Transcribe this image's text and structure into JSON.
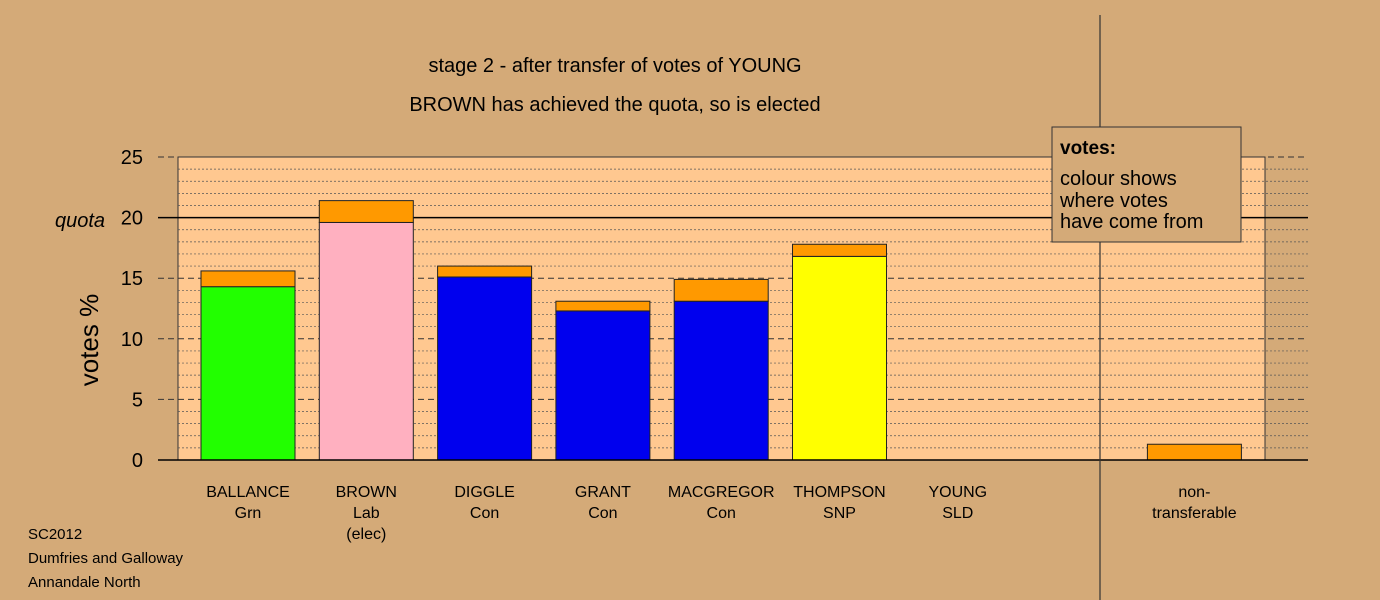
{
  "chart_data": {
    "type": "bar",
    "stacked": true,
    "title": "stage 2 - after transfer of votes of YOUNG",
    "subtitle": "BROWN has achieved the quota, so is elected",
    "ylabel": "votes %",
    "ylim": [
      0,
      25
    ],
    "yticks": [
      "0",
      "5",
      "10",
      "15",
      "20",
      "25"
    ],
    "quota_value": 20,
    "quota_label": "quota",
    "grid": true,
    "categories": [
      {
        "name": "BALLANCE",
        "party": "Grn",
        "note": ""
      },
      {
        "name": "BROWN",
        "party": "Lab",
        "note": "(elec)"
      },
      {
        "name": "DIGGLE",
        "party": "Con",
        "note": ""
      },
      {
        "name": "GRANT",
        "party": "Con",
        "note": ""
      },
      {
        "name": "MACGREGOR",
        "party": "Con",
        "note": ""
      },
      {
        "name": "THOMPSON",
        "party": "SNP",
        "note": ""
      },
      {
        "name": "YOUNG",
        "party": "SLD",
        "note": ""
      },
      {
        "name": "",
        "party": "",
        "note": ""
      },
      {
        "name": "non-",
        "party": "transferable",
        "note": ""
      }
    ],
    "series": [
      {
        "color": "#22ff00",
        "values": [
          14.3,
          0,
          0,
          0,
          0,
          0,
          0,
          0,
          0
        ]
      },
      {
        "color": "#ffb0c0",
        "values": [
          0,
          19.6,
          0,
          0,
          0,
          0,
          0,
          0,
          0
        ]
      },
      {
        "color": "#0000ee",
        "values": [
          0,
          0,
          15.1,
          12.3,
          13.1,
          0,
          0,
          0,
          0
        ]
      },
      {
        "color": "#ffff00",
        "values": [
          0,
          0,
          0,
          0,
          0,
          16.8,
          0,
          0,
          0
        ]
      },
      {
        "color": "#ff9900",
        "values": [
          1.3,
          1.8,
          0.9,
          0.8,
          1.8,
          1.0,
          0,
          0,
          1.3
        ]
      }
    ],
    "legend": {
      "placement": "top-right",
      "title": "votes:",
      "lines": [
        "colour shows",
        "where votes",
        "have come from"
      ]
    }
  },
  "footer": {
    "lines": [
      "SC2012",
      "Dumfries and Galloway",
      "Annandale North"
    ]
  },
  "colors": {
    "background": "#d4aa78",
    "plot_area": "#ffc890",
    "legend_box": "#d4aa78"
  }
}
